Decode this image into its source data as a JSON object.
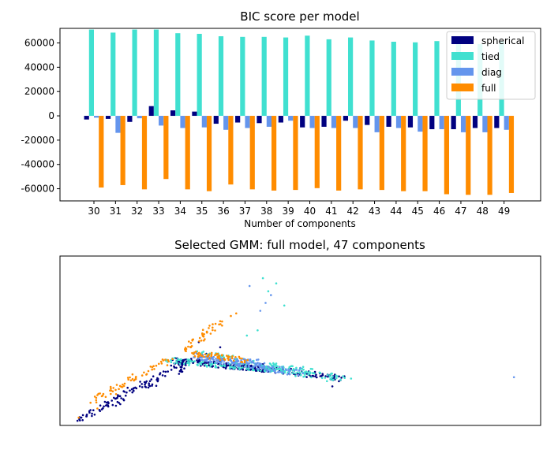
{
  "chart_data": [
    {
      "type": "bar",
      "title": "BIC score per model",
      "xlabel": "Number of components",
      "ylabel": "",
      "ylim": [
        -70000,
        72000
      ],
      "yticks": [
        -60000,
        -40000,
        -20000,
        0,
        20000,
        40000,
        60000
      ],
      "categories": [
        "30",
        "31",
        "32",
        "33",
        "34",
        "35",
        "36",
        "37",
        "38",
        "39",
        "40",
        "41",
        "42",
        "43",
        "44",
        "45",
        "46",
        "47",
        "48",
        "49"
      ],
      "legend_position": "top-right",
      "series": [
        {
          "name": "spherical",
          "color": "#000080",
          "values": [
            -3000,
            -2500,
            -5000,
            8000,
            4500,
            3500,
            -6500,
            -5500,
            -6000,
            -5500,
            -9500,
            -9000,
            -4000,
            -7500,
            -9000,
            -9500,
            -11000,
            -11000,
            -10000,
            -10000
          ]
        },
        {
          "name": "tied",
          "color": "#40e0d0",
          "values": [
            71000,
            68500,
            71000,
            71000,
            68000,
            67500,
            65500,
            65000,
            65000,
            64500,
            66000,
            63000,
            64500,
            62000,
            61000,
            60500,
            61500,
            60000,
            59000,
            61500
          ]
        },
        {
          "name": "diag",
          "color": "#6495ed",
          "values": [
            -1500,
            -14000,
            -2000,
            -8000,
            -10000,
            -9500,
            -11500,
            -10000,
            -9000,
            -4000,
            -10000,
            -10000,
            -10000,
            -13500,
            -10000,
            -13000,
            -11000,
            -13500,
            -13500,
            -11500
          ]
        },
        {
          "name": "full",
          "color": "#ff8c00",
          "values": [
            -59000,
            -57000,
            -60500,
            -52000,
            -60500,
            -62000,
            -56500,
            -60500,
            -61500,
            -61000,
            -59500,
            -61500,
            -60500,
            -61000,
            -62000,
            -62000,
            -64500,
            -65000,
            -65000,
            -63500
          ]
        }
      ]
    },
    {
      "type": "scatter",
      "title": "Selected GMM: full model, 47 components",
      "xlabel": "",
      "ylabel": "",
      "xlim": [
        -4,
        14
      ],
      "ylim": [
        -3,
        10
      ],
      "cluster_colors": [
        "#000080",
        "#40e0d0",
        "#6495ed",
        "#ff8c00"
      ],
      "clusters": [
        {
          "color": "#000080",
          "segments": [
            [
              -3.3,
              -2.5,
              0.8,
              2.0,
              90
            ],
            [
              0.2,
              2.0,
              3.8,
              1.3,
              160
            ],
            [
              4.0,
              1.3,
              6.6,
              0.6,
              70
            ],
            [
              -2.0,
              -1.5,
              1.5,
              2.5,
              40
            ]
          ],
          "points": [
            [
              1.2,
              3.4
            ],
            [
              2.0,
              3.0
            ],
            [
              3.6,
              1.7
            ],
            [
              6.2,
              0.0
            ],
            [
              5.0,
              1.4
            ],
            [
              -3.2,
              -2.4
            ],
            [
              -3.0,
              -2.3
            ],
            [
              -2.8,
              -2.1
            ],
            [
              -2.5,
              -1.9
            ]
          ]
        },
        {
          "color": "#40e0d0",
          "segments": [
            [
              0.0,
              2.0,
              4.5,
              1.2,
              130
            ],
            [
              1.0,
              2.6,
              5.5,
              1.1,
              80
            ],
            [
              4.0,
              1.2,
              6.8,
              0.6,
              40
            ]
          ],
          "points": [
            [
              3.6,
              8.3
            ],
            [
              3.8,
              7.3
            ],
            [
              4.1,
              7.9
            ],
            [
              4.4,
              6.2
            ],
            [
              3.0,
              3.9
            ],
            [
              5.3,
              0.9
            ],
            [
              6.0,
              0.4
            ],
            [
              6.5,
              0.5
            ],
            [
              6.9,
              0.6
            ],
            [
              3.4,
              4.3
            ],
            [
              1.5,
              1.6
            ]
          ]
        },
        {
          "color": "#6495ed",
          "segments": [
            [
              0.8,
              2.4,
              5.0,
              1.0,
              110
            ],
            [
              1.5,
              2.0,
              3.6,
              1.8,
              70
            ]
          ],
          "points": [
            [
              3.5,
              5.8
            ],
            [
              3.9,
              7.0
            ],
            [
              3.7,
              6.4
            ],
            [
              3.1,
              7.7
            ],
            [
              13.0,
              0.7
            ],
            [
              5.0,
              1.4
            ],
            [
              4.2,
              1.1
            ]
          ]
        },
        {
          "color": "#ff8c00",
          "segments": [
            [
              -2.9,
              -1.2,
              0.2,
              2.2,
              60
            ],
            [
              0.5,
              2.6,
              2.0,
              4.9,
              40
            ],
            [
              1.0,
              2.5,
              3.0,
              2.0,
              60
            ]
          ],
          "points": [
            [
              2.4,
              5.4
            ],
            [
              2.0,
              5.0
            ],
            [
              1.5,
              4.2
            ],
            [
              2.6,
              5.6
            ],
            [
              0.9,
              3.0
            ],
            [
              -3.3,
              -2.4
            ],
            [
              -2.6,
              -1.7
            ],
            [
              -1.9,
              -0.6
            ]
          ]
        }
      ]
    }
  ]
}
